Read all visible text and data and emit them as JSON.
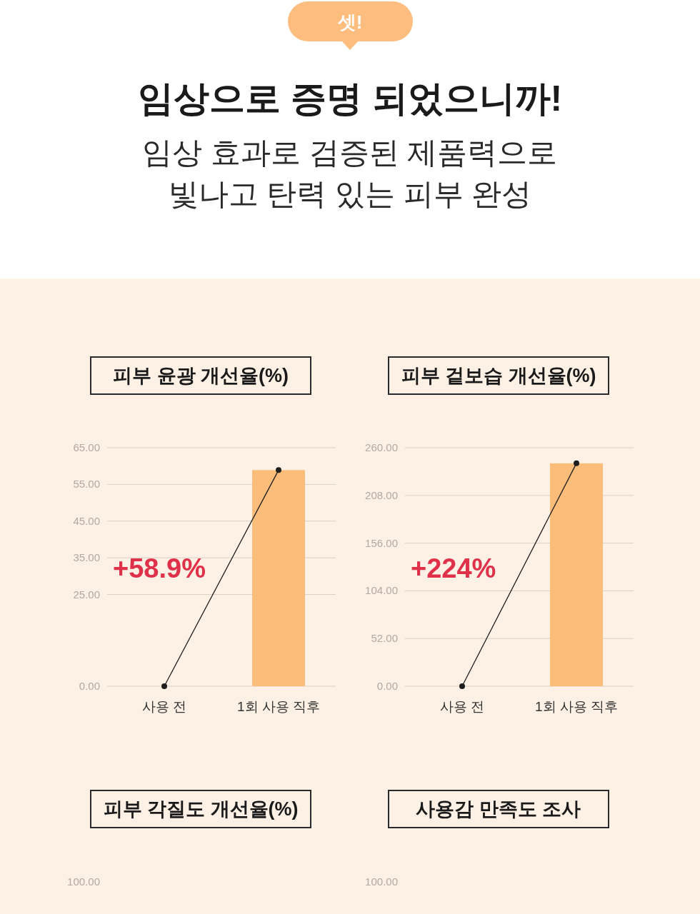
{
  "chart_data": [
    {
      "type": "other",
      "title": "임상으로 증명 되었으니까!",
      "subtitle": "임상 효과로 검증된 제품력으로 빛나고 탄력 있는 피부 완성",
      "annotations": [
        "셋!"
      ]
    },
    {
      "type": "bar",
      "title": "피부 윤광 개선율(%)",
      "categories": [
        "사용 전",
        "1회 사용 직후"
      ],
      "series": [
        {
          "type": "bar",
          "color": "#fcbd7b",
          "values": [
            0,
            58.9
          ]
        },
        {
          "type": "line",
          "color": "#1e1e1e",
          "values": [
            0,
            58.9
          ]
        }
      ],
      "ylim": [
        0,
        65
      ],
      "yticks": [
        {
          "value": 0,
          "label": "0.00"
        },
        {
          "value": 25,
          "label": "25.00"
        },
        {
          "value": 35,
          "label": "35.00"
        },
        {
          "value": 45,
          "label": "45.00"
        },
        {
          "value": 55,
          "label": "55.00"
        },
        {
          "value": 65,
          "label": "65.00"
        }
      ],
      "grid": "y",
      "marker": "circle",
      "annotations": [
        "+58.9%"
      ]
    },
    {
      "type": "bar",
      "title": "피부 겉보습 개선율(%)",
      "categories": [
        "사용 전",
        "1회 사용 직후"
      ],
      "series": [
        {
          "type": "bar",
          "color": "#fcbd7b",
          "values": [
            0,
            243
          ]
        },
        {
          "type": "line",
          "color": "#1e1e1e",
          "values": [
            0,
            243
          ]
        }
      ],
      "ylim": [
        0,
        260
      ],
      "yticks": [
        {
          "value": 0,
          "label": "0.00"
        },
        {
          "value": 52,
          "label": "52.00"
        },
        {
          "value": 104,
          "label": "104.00"
        },
        {
          "value": 156,
          "label": "156.00"
        },
        {
          "value": 208,
          "label": "208.00"
        },
        {
          "value": 260,
          "label": "260.00"
        }
      ],
      "grid": "y",
      "marker": "circle",
      "annotations": [
        "+224%"
      ]
    },
    {
      "type": "other",
      "title": "피부 각질도 개선율(%)",
      "annotations": [
        "100.00"
      ]
    },
    {
      "type": "other",
      "title": "사용감 만족도 조사",
      "annotations": [
        "100.00"
      ]
    }
  ]
}
